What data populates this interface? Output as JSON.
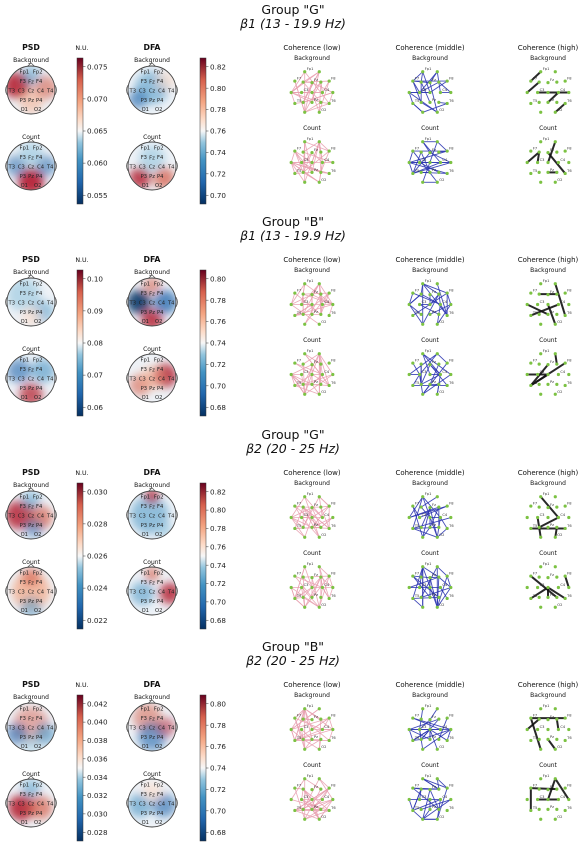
{
  "chart_data": [
    {
      "type": "heatmap",
      "group_title": "Group \"G\"",
      "band_title": "β1 (13 - 19.9 Hz)",
      "psd": {
        "title": "PSD",
        "rows": [
          "Background",
          "Count"
        ],
        "cbar_unit": "N.U.",
        "ticks": [
          "0.075",
          "0.070",
          "0.065",
          "0.060",
          "0.055"
        ]
      },
      "dfa": {
        "title": "DFA",
        "ticks": [
          "0.82",
          "0.80",
          "0.78",
          "0.76",
          "0.74",
          "0.72",
          "0.70"
        ]
      },
      "coherence": {
        "titles": [
          "Coherence (low)",
          "Coherence (middle)",
          "Coherence (high)"
        ],
        "rows": [
          "Background",
          "Count"
        ]
      }
    },
    {
      "type": "heatmap",
      "group_title": "Group \"B\"",
      "band_title": "β1 (13 - 19.9 Hz)",
      "psd": {
        "title": "PSD",
        "rows": [
          "Background",
          "Count"
        ],
        "cbar_unit": "N.U.",
        "ticks": [
          "0.10",
          "0.09",
          "0.08",
          "0.07",
          "0.06"
        ]
      },
      "dfa": {
        "title": "DFA",
        "ticks": [
          "0.80",
          "0.78",
          "0.76",
          "0.74",
          "0.72",
          "0.70",
          "0.68"
        ]
      },
      "coherence": {
        "titles": [
          "Coherence (low)",
          "Coherence (middle)",
          "Coherence (high)"
        ],
        "rows": [
          "Background",
          "Count"
        ]
      }
    },
    {
      "type": "heatmap",
      "group_title": "Group \"G\"",
      "band_title": "β2 (20 - 25 Hz)",
      "psd": {
        "title": "PSD",
        "rows": [
          "Background",
          "Count"
        ],
        "cbar_unit": "N.U.",
        "ticks": [
          "0.030",
          "0.028",
          "0.026",
          "0.024",
          "0.022"
        ]
      },
      "dfa": {
        "title": "DFA",
        "ticks": [
          "0.82",
          "0.80",
          "0.78",
          "0.76",
          "0.74",
          "0.72",
          "0.70",
          "0.68"
        ]
      },
      "coherence": {
        "titles": [
          "Coherence (low)",
          "Coherence (middle)",
          "Coherence (high)"
        ],
        "rows": [
          "Background",
          "Count"
        ]
      }
    },
    {
      "type": "heatmap",
      "group_title": "Group \"B\"",
      "band_title": "β2 (20 - 25 Hz)",
      "psd": {
        "title": "PSD",
        "rows": [
          "Background",
          "Count"
        ],
        "cbar_unit": "N.U.",
        "ticks": [
          "0.042",
          "0.040",
          "0.038",
          "0.036",
          "0.034",
          "0.032",
          "0.030",
          "0.028"
        ]
      },
      "dfa": {
        "title": "DFA",
        "ticks": [
          "0.80",
          "0.78",
          "0.76",
          "0.74",
          "0.72",
          "0.70",
          "0.68"
        ]
      },
      "coherence": {
        "titles": [
          "Coherence (low)",
          "Coherence (middle)",
          "Coherence (high)"
        ],
        "rows": [
          "Background",
          "Count"
        ]
      }
    }
  ],
  "electrodes": [
    "Fp1",
    "Fp2",
    "F7",
    "F3",
    "Fz",
    "F4",
    "F8",
    "T3",
    "C3",
    "Cz",
    "C4",
    "T4",
    "T5",
    "P3",
    "Pz",
    "P4",
    "T6",
    "O1",
    "O2"
  ],
  "colors": {
    "red": "#b2182b",
    "blue": "#2166ac",
    "mid": "#f7f7f7",
    "low_edge": "#e8a0b0",
    "mid_edge": "#2b35b0",
    "high_edge": "#111111",
    "node": "#7cc243"
  }
}
